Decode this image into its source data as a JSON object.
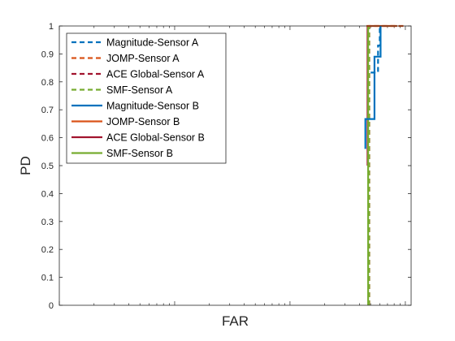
{
  "chart_data": {
    "type": "line",
    "title": "",
    "xlabel": "FAR",
    "ylabel": "PD",
    "x_scale": "log",
    "x_tick_labels_visible": false,
    "ylim": [
      0,
      1
    ],
    "y_ticks": [
      "0",
      "0.1",
      "0.2",
      "0.3",
      "0.4",
      "0.5",
      "0.6",
      "0.7",
      "0.8",
      "0.9",
      "1"
    ],
    "grid": false,
    "legend_position": "top-left",
    "series": [
      {
        "name": "Magnitude-Sensor A",
        "color": "#0072BD",
        "style": "dashed",
        "points": [
          [
            0.5,
            0.833
          ],
          [
            0.52,
            0.833
          ],
          [
            0.55,
            0.833
          ],
          [
            0.58,
            0.833
          ],
          [
            0.58,
            0.93
          ],
          [
            0.6,
            0.93
          ],
          [
            0.6,
            1.0
          ]
        ]
      },
      {
        "name": "JOMP-Sensor A",
        "color": "#D95319",
        "style": "dashed",
        "points": [
          [
            0.487,
            0.0
          ],
          [
            0.487,
            1.0
          ],
          [
            1.0,
            1.0
          ]
        ]
      },
      {
        "name": "ACE Global-Sensor A",
        "color": "#A2142F",
        "style": "dashed",
        "points": [
          [
            0.486,
            0.0
          ],
          [
            0.486,
            1.0
          ]
        ]
      },
      {
        "name": "SMF-Sensor A",
        "color": "#77AC30",
        "style": "dashed",
        "points": [
          [
            0.485,
            0.0
          ],
          [
            0.485,
            1.0
          ]
        ]
      },
      {
        "name": "Magnitude-Sensor B",
        "color": "#0072BD",
        "style": "solid",
        "points": [
          [
            0.45,
            0.56
          ],
          [
            0.45,
            0.667
          ],
          [
            0.54,
            0.667
          ],
          [
            0.54,
            0.89
          ],
          [
            0.61,
            0.89
          ],
          [
            0.61,
            1.0
          ]
        ]
      },
      {
        "name": "JOMP-Sensor B",
        "color": "#D95319",
        "style": "solid",
        "points": [
          [
            0.46,
            1.0
          ],
          [
            0.85,
            1.0
          ]
        ]
      },
      {
        "name": "ACE Global-Sensor B",
        "color": "#A2142F",
        "style": "solid",
        "points": [
          [
            0.47,
            0.5
          ],
          [
            0.47,
            1.0
          ]
        ]
      },
      {
        "name": "SMF-Sensor B",
        "color": "#77AC30",
        "style": "solid",
        "points": [
          [
            0.476,
            0.0
          ],
          [
            0.476,
            1.0
          ]
        ]
      }
    ]
  }
}
